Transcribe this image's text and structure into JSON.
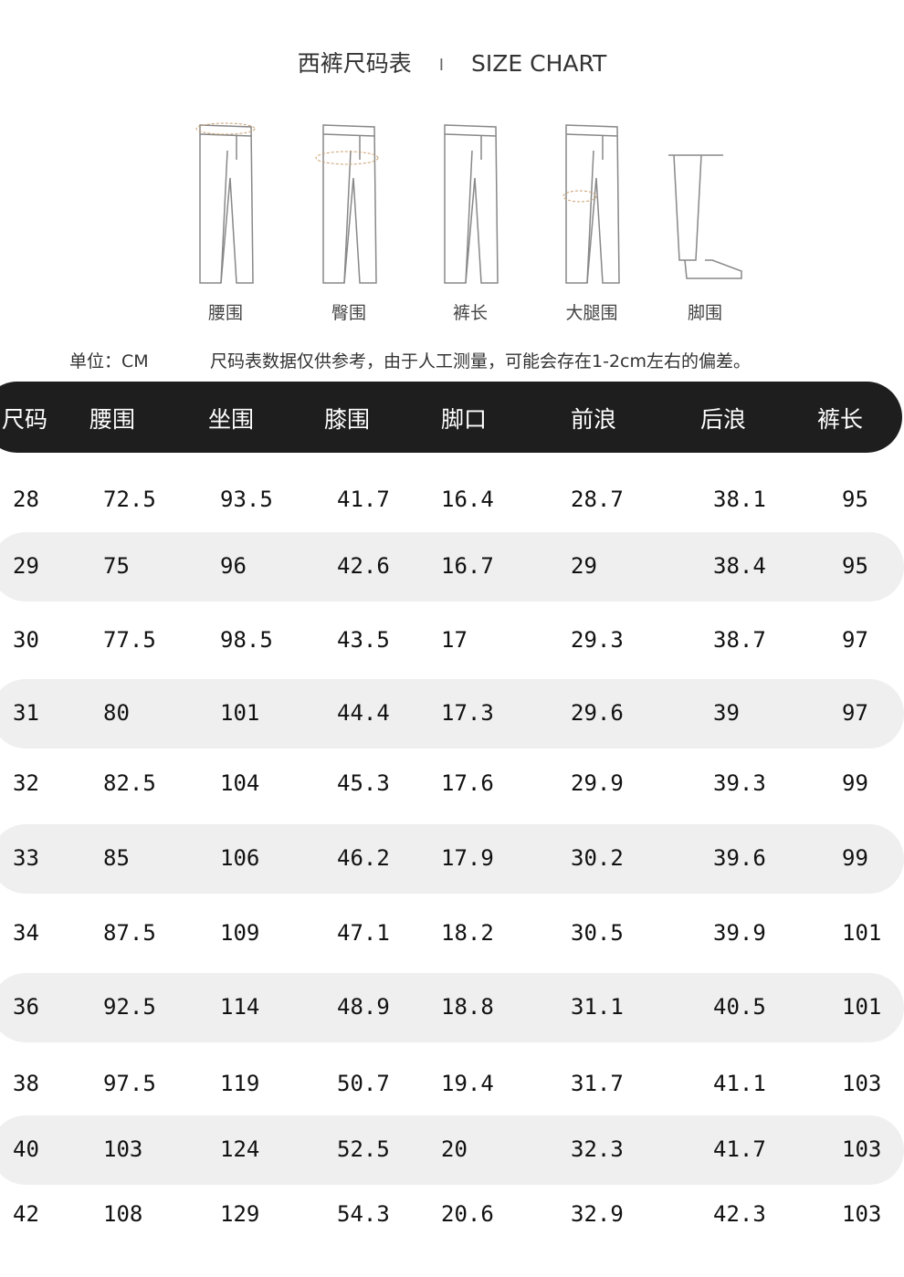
{
  "title": {
    "cn": "西裤尺码表",
    "separator": "I",
    "en": "SIZE CHART"
  },
  "figures": [
    {
      "label": "腰围",
      "icon": "pants-waist-icon"
    },
    {
      "label": "臀围",
      "icon": "pants-hip-icon"
    },
    {
      "label": "裤长",
      "icon": "pants-length-icon"
    },
    {
      "label": "大腿围",
      "icon": "pants-thigh-icon"
    },
    {
      "label": "脚围",
      "icon": "pants-hem-icon"
    }
  ],
  "unit": "单位：CM",
  "note": "尺码表数据仅供参考，由于人工测量，可能会存在1-2cm左右的偏差。",
  "table": {
    "headers": [
      "尺码",
      "腰围",
      "坐围",
      "膝围",
      "脚口",
      "前浪",
      "后浪",
      "裤长"
    ],
    "rows": [
      [
        "28",
        "72.5",
        "93.5",
        "41.7",
        "16.4",
        "28.7",
        "38.1",
        "95"
      ],
      [
        "29",
        "75",
        "96",
        "42.6",
        "16.7",
        "29",
        "38.4",
        "95"
      ],
      [
        "30",
        "77.5",
        "98.5",
        "43.5",
        "17",
        "29.3",
        "38.7",
        "97"
      ],
      [
        "31",
        "80",
        "101",
        "44.4",
        "17.3",
        "29.6",
        "39",
        "97"
      ],
      [
        "32",
        "82.5",
        "104",
        "45.3",
        "17.6",
        "29.9",
        "39.3",
        "99"
      ],
      [
        "33",
        "85",
        "106",
        "46.2",
        "17.9",
        "30.2",
        "39.6",
        "99"
      ],
      [
        "34",
        "87.5",
        "109",
        "47.1",
        "18.2",
        "30.5",
        "39.9",
        "101"
      ],
      [
        "36",
        "92.5",
        "114",
        "48.9",
        "18.8",
        "31.1",
        "40.5",
        "101"
      ],
      [
        "38",
        "97.5",
        "119",
        "50.7",
        "19.4",
        "31.7",
        "41.1",
        "103"
      ],
      [
        "40",
        "103",
        "124",
        "52.5",
        "20",
        "32.3",
        "41.7",
        "103"
      ],
      [
        "42",
        "108",
        "129",
        "54.3",
        "20.6",
        "32.9",
        "42.3",
        "103"
      ]
    ]
  },
  "colors": {
    "header_bg": "#1e1e1e",
    "stripe": "#efefef"
  }
}
